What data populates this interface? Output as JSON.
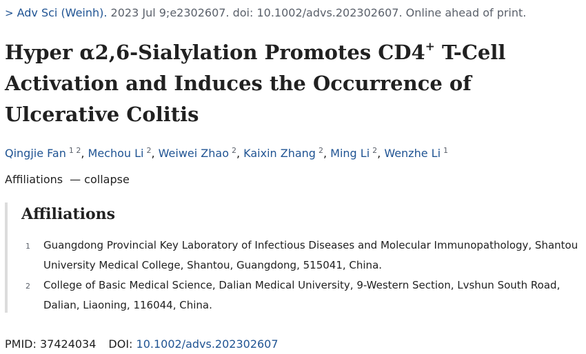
{
  "citation": {
    "journal": "Adv Sci (Weinh).",
    "details": " 2023 Jul 9;e2302607. doi: 10.1002/advs.202302607. Online ahead of print."
  },
  "title": {
    "part1": "Hyper α2,6-Sialylation Promotes CD4",
    "sup": "+",
    "part2": " T-Cell Activation and Induces the Occurrence of Ulcerative Colitis"
  },
  "authors": [
    {
      "name": "Qingjie Fan",
      "affiliations": "1 2"
    },
    {
      "name": "Mechou Li",
      "affiliations": "2"
    },
    {
      "name": "Weiwei Zhao",
      "affiliations": "2"
    },
    {
      "name": "Kaixin Zhang",
      "affiliations": "2"
    },
    {
      "name": "Ming Li",
      "affiliations": "2"
    },
    {
      "name": "Wenzhe Li",
      "affiliations": "1"
    }
  ],
  "affiliation_toggle": {
    "label": "Affiliations",
    "toggle": "— collapse"
  },
  "affiliations": {
    "heading": "Affiliations",
    "items": [
      {
        "num": "1",
        "text": "Guangdong Provincial Key Laboratory of Infectious Diseases and Molecular Immunopathology, Shantou University Medical College, Shantou, Guangdong, 515041, China."
      },
      {
        "num": "2",
        "text": "College of Basic Medical Science, Dalian Medical University, 9-Western Section, Lvshun South Road, Dalian, Liaoning, 116044, China."
      }
    ]
  },
  "identifiers": {
    "pmid_label": "PMID: ",
    "pmid": "37424034",
    "doi_label": "DOI: ",
    "doi": "10.1002/advs.202302607"
  }
}
